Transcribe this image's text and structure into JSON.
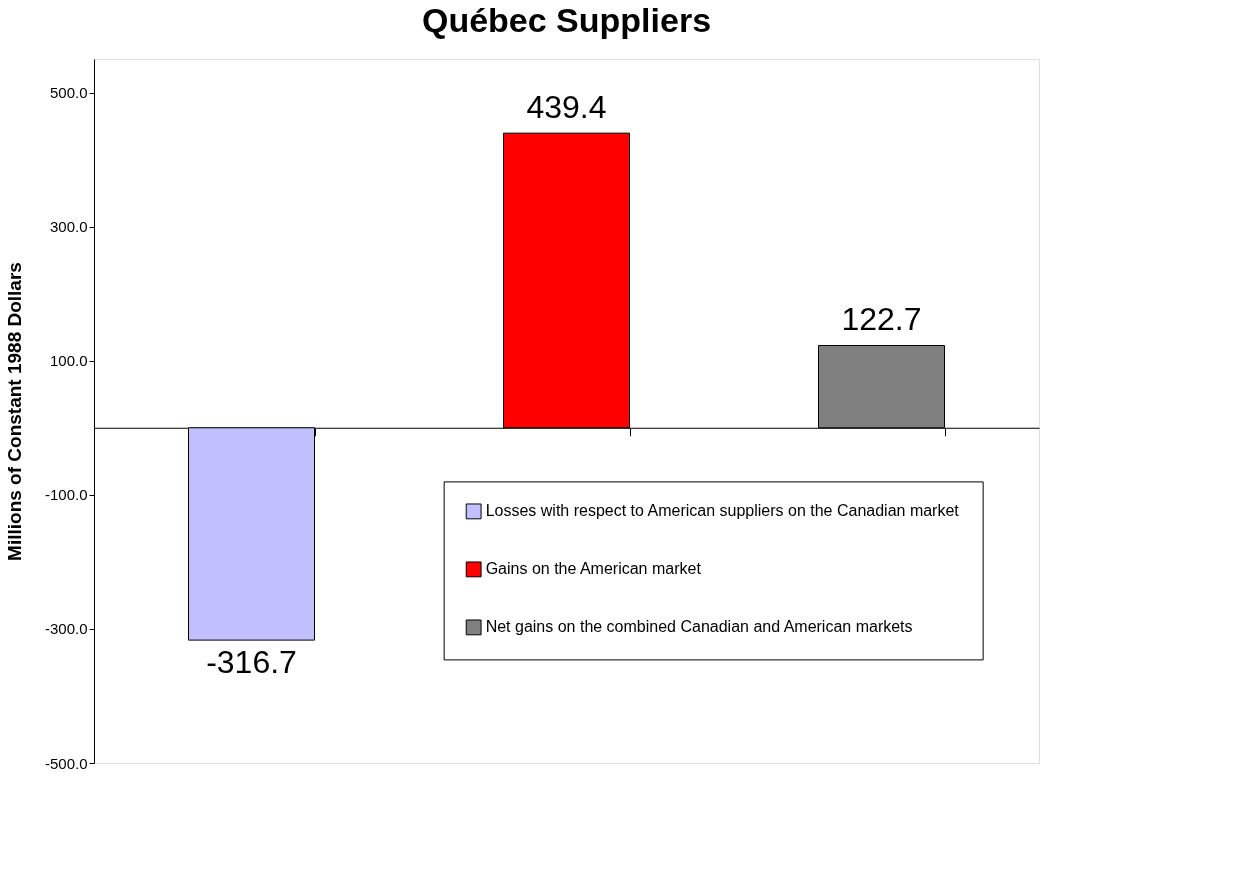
{
  "chart_data": {
    "type": "bar",
    "title": "Québec Suppliers",
    "ylabel": "Millions of Constant 1988 Dollars",
    "categories": [
      null,
      null,
      null
    ],
    "series": [
      {
        "name": "Losses with respect to American suppliers on the Canadian market",
        "color": "#c0c0ff",
        "values": [
          -316.7,
          null,
          null
        ]
      },
      {
        "name": "Gains on the American market",
        "color": "#ff0000",
        "values": [
          null,
          439.4,
          null
        ]
      },
      {
        "name": "Net gains on the combined Canadian and American markets",
        "color": "#808080",
        "values": [
          null,
          null,
          122.7
        ]
      }
    ],
    "ylim": [
      -500,
      550
    ],
    "yticks": [
      {
        "value": -500,
        "label": "-500.0"
      },
      {
        "value": -300,
        "label": "-300.0"
      },
      {
        "value": -100,
        "label": "-100.0"
      },
      {
        "value": 100,
        "label": "100.0"
      },
      {
        "value": 300,
        "label": "300.0"
      },
      {
        "value": 500,
        "label": "500.0"
      }
    ],
    "data_labels": true,
    "grid": false,
    "legend": "bottom right"
  }
}
